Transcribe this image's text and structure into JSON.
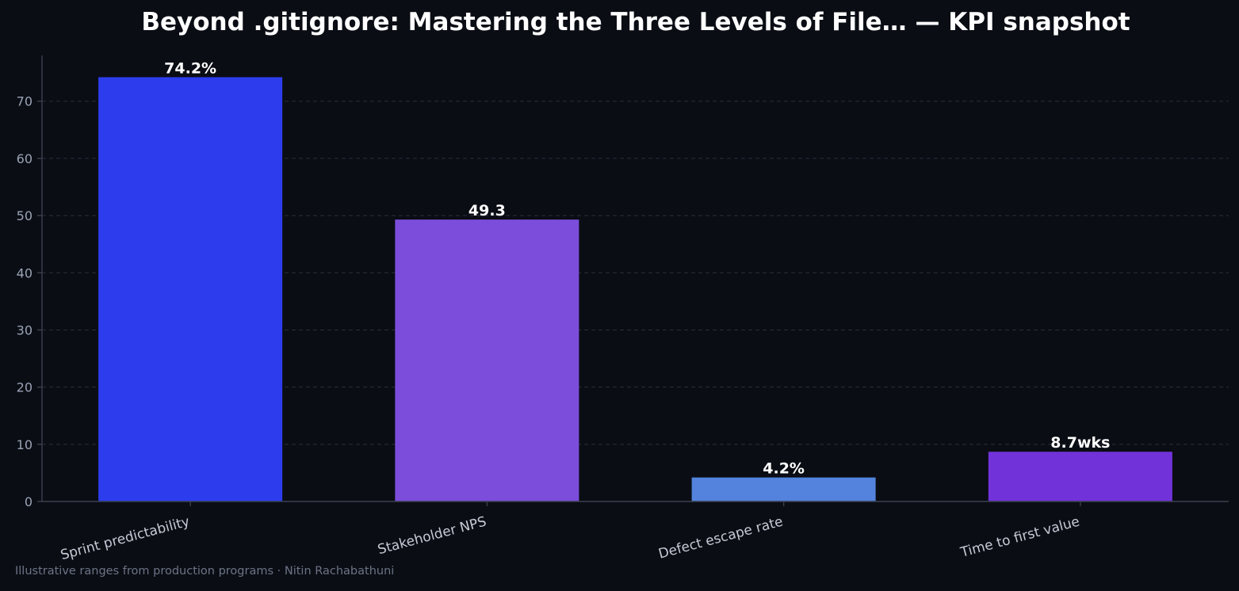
{
  "chart_data": {
    "type": "bar",
    "title": "Beyond .gitignore: Mastering the Three Levels of File… — KPI snapshot",
    "categories": [
      "Sprint predictability",
      "Stakeholder NPS",
      "Defect escape rate",
      "Time to first value"
    ],
    "values": [
      74.2,
      49.3,
      4.2,
      8.7
    ],
    "value_labels": [
      "74.2%",
      "49.3",
      "4.2%",
      "8.7wks"
    ],
    "colors": [
      "#2d3ded",
      "#7c4ddb",
      "#5383dd",
      "#7132d9"
    ],
    "xlabel": "",
    "ylabel": "",
    "ylim": [
      0,
      78
    ],
    "yticks": [
      0,
      10,
      20,
      30,
      40,
      50,
      60,
      70
    ],
    "grid": true,
    "legend": "none"
  },
  "footer": "Illustrative ranges from production programs · Nitin Rachabathuni"
}
